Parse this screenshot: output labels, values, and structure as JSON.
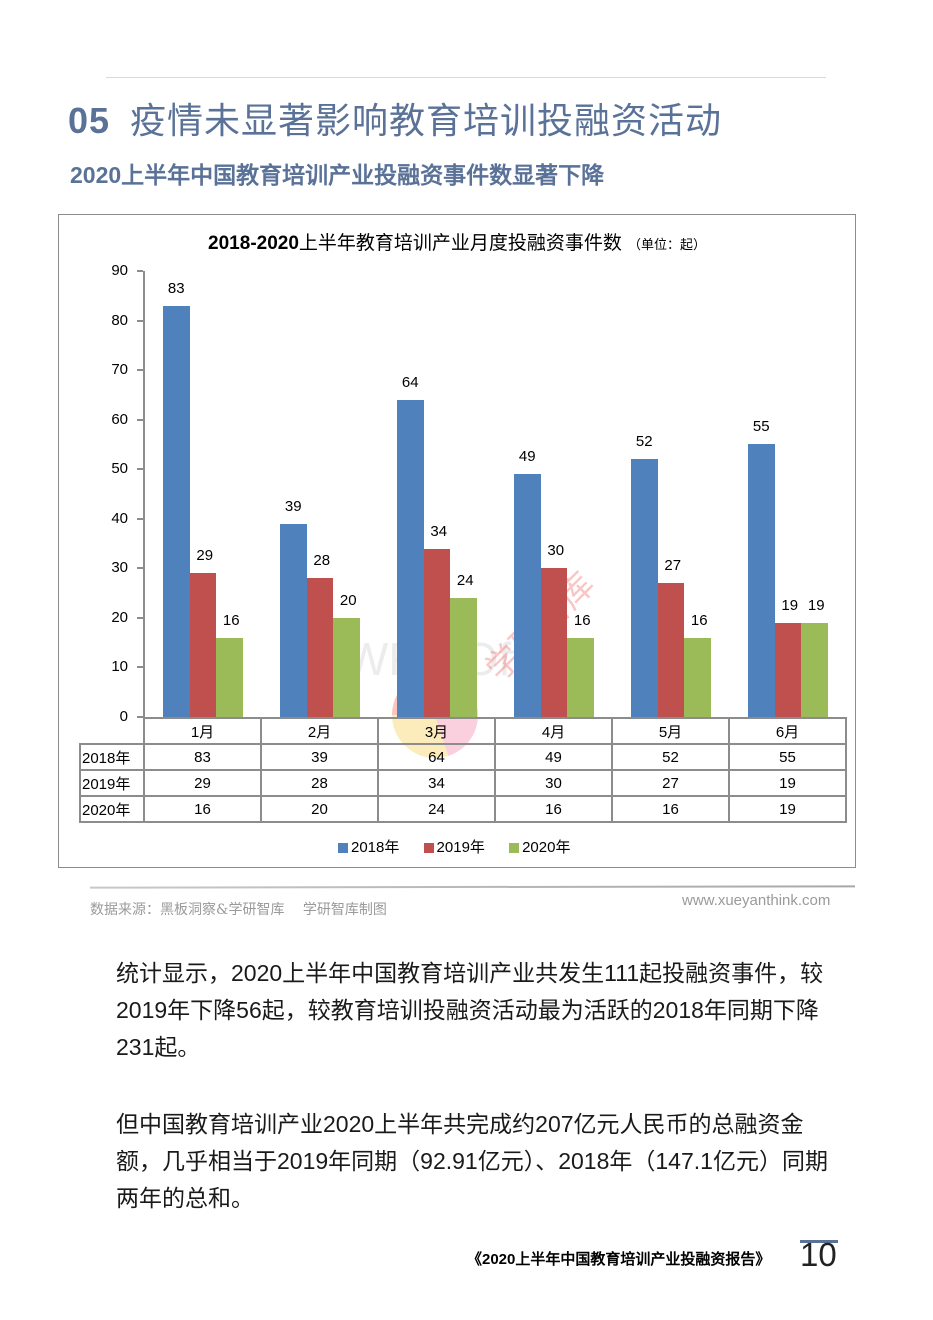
{
  "section": {
    "number": "05",
    "title": "疫情未显著影响教育培训投融资活动",
    "subtitle": "2020上半年中国教育培训产业投融资事件数显著下降"
  },
  "chart": {
    "title_bold": "2018-2020",
    "title_rest": "上半年教育培训产业月度投融资事件数",
    "unit": "（单位：起）",
    "y_ticks": [
      "0",
      "10",
      "20",
      "30",
      "40",
      "50",
      "60",
      "70",
      "80",
      "90"
    ],
    "months": [
      "1月",
      "2月",
      "3月",
      "4月",
      "5月",
      "6月"
    ],
    "series_labels": [
      "2018年",
      "2019年",
      "2020年"
    ],
    "colors": {
      "s2018": "#4f81bd",
      "s2019": "#c0504d",
      "s2020": "#9bbb59"
    },
    "table": {
      "rows": [
        {
          "label": "2018年",
          "values": [
            "83",
            "39",
            "64",
            "49",
            "52",
            "55"
          ]
        },
        {
          "label": "2019年",
          "values": [
            "29",
            "28",
            "34",
            "30",
            "27",
            "19"
          ]
        },
        {
          "label": "2020年",
          "values": [
            "16",
            "20",
            "24",
            "16",
            "16",
            "19"
          ]
        }
      ]
    },
    "legend": [
      "2018年",
      "2019年",
      "2020年"
    ]
  },
  "chart_data": {
    "type": "bar",
    "title": "2018-2020上半年教育培训产业月度投融资事件数（单位：起）",
    "categories": [
      "1月",
      "2月",
      "3月",
      "4月",
      "5月",
      "6月"
    ],
    "series": [
      {
        "name": "2018年",
        "values": [
          83,
          39,
          64,
          49,
          52,
          55
        ],
        "color": "#4f81bd"
      },
      {
        "name": "2019年",
        "values": [
          29,
          28,
          34,
          30,
          27,
          19
        ],
        "color": "#c0504d"
      },
      {
        "name": "2020年",
        "values": [
          16,
          20,
          24,
          16,
          16,
          19
        ],
        "color": "#9bbb59"
      }
    ],
    "xlabel": "",
    "ylabel": "",
    "ylim": [
      0,
      90
    ],
    "y_ticks": [
      0,
      10,
      20,
      30,
      40,
      50,
      60,
      70,
      80,
      90
    ],
    "grid": false,
    "legend_position": "bottom",
    "data_table": true
  },
  "watermarks": {
    "wps": "WPS Office",
    "xueyan": "学研智库",
    "xueyan_en": "XUE YAN THINK TANK"
  },
  "source": {
    "text": "数据来源：黑板洞察&学研智库　 学研智库制图",
    "site": "www.xueyanthink.com"
  },
  "body": {
    "p1": "统计显示，2020上半年中国教育培训产业共发生111起投融资事件，较2019年下降56起，较教育培训投融资活动最为活跃的2018年同期下降231起。",
    "p2": "但中国教育培训产业2020上半年共完成约207亿元人民币的总融资金额，几乎相当于2019年同期（92.91亿元）、2018年（147.1亿元）同期两年的总和。"
  },
  "footer": {
    "report_title": "《2020上半年中国教育培训产业投融资报告》",
    "page": "10"
  }
}
